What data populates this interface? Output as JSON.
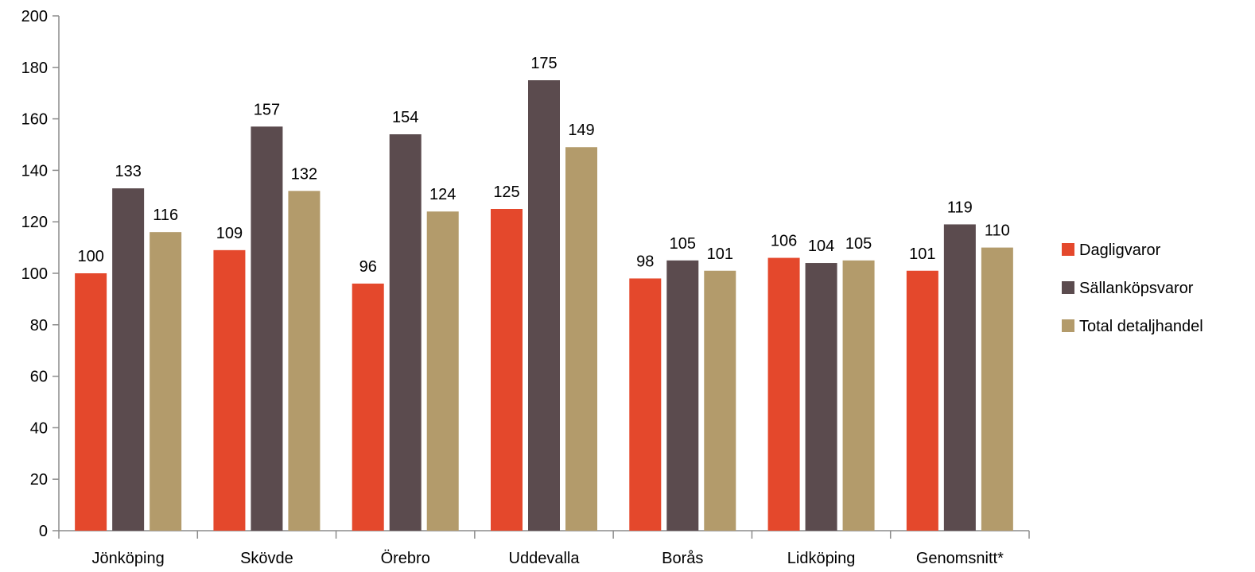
{
  "chart_data": {
    "type": "bar",
    "categories": [
      "Jönköping",
      "Skövde",
      "Örebro",
      "Uddevalla",
      "Borås",
      "Lidköping",
      "Genomsnitt*"
    ],
    "series": [
      {
        "name": "Dagligvaror",
        "color": "#e4482c",
        "values": [
          100,
          109,
          96,
          125,
          98,
          106,
          101
        ]
      },
      {
        "name": "Sällanköpsvaror",
        "color": "#5b4b4e",
        "values": [
          133,
          157,
          154,
          175,
          105,
          104,
          119
        ]
      },
      {
        "name": "Total detaljhandel",
        "color": "#b39b6b",
        "values": [
          116,
          132,
          124,
          149,
          101,
          105,
          110
        ]
      }
    ],
    "ylim": [
      0,
      200
    ],
    "yticks": [
      0,
      20,
      40,
      60,
      80,
      100,
      120,
      140,
      160,
      180,
      200
    ],
    "grid": false,
    "legend_position": "right"
  }
}
